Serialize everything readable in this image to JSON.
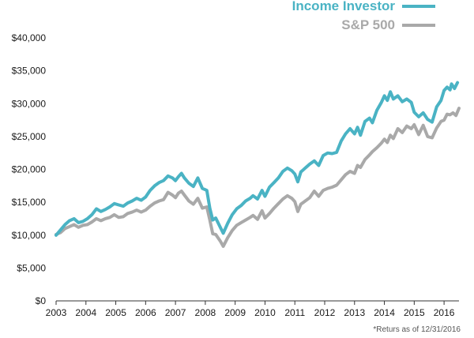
{
  "chart_data": {
    "type": "line",
    "title": "",
    "xlabel": "",
    "ylabel": "",
    "xlim": [
      2003,
      2016.5
    ],
    "ylim": [
      0,
      40000
    ],
    "grid": false,
    "legend_position": "top-right",
    "y_ticks": [
      0,
      5000,
      10000,
      15000,
      20000,
      25000,
      30000,
      35000,
      40000
    ],
    "y_tick_labels": [
      "$0",
      "$5,000",
      "$10,000",
      "$15,000",
      "$20,000",
      "$25,000",
      "$30,000",
      "$35,000",
      "$40,000"
    ],
    "x_ticks": [
      2003,
      2004,
      2005,
      2006,
      2007,
      2008,
      2009,
      2010,
      2011,
      2012,
      2013,
      2014,
      2015,
      2016
    ],
    "x_tick_labels": [
      "2003",
      "2004",
      "2005",
      "2006",
      "2007",
      "2008",
      "2009",
      "2010",
      "2011",
      "2012",
      "2013",
      "2014",
      "2015",
      "2016"
    ],
    "footnote": "*Returs as of 12/31/2016",
    "series": [
      {
        "name": "Income Investor",
        "color": "#4ab3c4",
        "points": [
          [
            2003.0,
            10000
          ],
          [
            2003.15,
            10800
          ],
          [
            2003.3,
            11600
          ],
          [
            2003.45,
            12200
          ],
          [
            2003.6,
            12500
          ],
          [
            2003.75,
            11900
          ],
          [
            2003.9,
            12100
          ],
          [
            2004.05,
            12500
          ],
          [
            2004.2,
            13100
          ],
          [
            2004.35,
            14000
          ],
          [
            2004.5,
            13600
          ],
          [
            2004.65,
            13900
          ],
          [
            2004.8,
            14300
          ],
          [
            2004.95,
            14800
          ],
          [
            2005.1,
            14600
          ],
          [
            2005.25,
            14400
          ],
          [
            2005.4,
            14900
          ],
          [
            2005.55,
            15200
          ],
          [
            2005.7,
            15600
          ],
          [
            2005.85,
            15300
          ],
          [
            2006.0,
            15800
          ],
          [
            2006.15,
            16800
          ],
          [
            2006.3,
            17500
          ],
          [
            2006.45,
            18000
          ],
          [
            2006.6,
            18300
          ],
          [
            2006.75,
            19000
          ],
          [
            2006.9,
            18700
          ],
          [
            2007.0,
            18300
          ],
          [
            2007.1,
            18900
          ],
          [
            2007.2,
            19400
          ],
          [
            2007.3,
            18700
          ],
          [
            2007.45,
            17900
          ],
          [
            2007.6,
            17400
          ],
          [
            2007.75,
            18700
          ],
          [
            2007.9,
            17100
          ],
          [
            2008.05,
            16800
          ],
          [
            2008.15,
            14100
          ],
          [
            2008.25,
            12300
          ],
          [
            2008.35,
            12600
          ],
          [
            2008.5,
            11200
          ],
          [
            2008.6,
            10300
          ],
          [
            2008.75,
            11800
          ],
          [
            2008.9,
            13100
          ],
          [
            2009.05,
            14000
          ],
          [
            2009.2,
            14500
          ],
          [
            2009.35,
            15200
          ],
          [
            2009.5,
            15600
          ],
          [
            2009.6,
            16000
          ],
          [
            2009.75,
            15500
          ],
          [
            2009.9,
            16800
          ],
          [
            2010.0,
            15900
          ],
          [
            2010.15,
            17300
          ],
          [
            2010.3,
            18000
          ],
          [
            2010.45,
            18700
          ],
          [
            2010.6,
            19700
          ],
          [
            2010.75,
            20200
          ],
          [
            2010.9,
            19800
          ],
          [
            2011.0,
            19300
          ],
          [
            2011.1,
            18100
          ],
          [
            2011.2,
            19600
          ],
          [
            2011.35,
            20200
          ],
          [
            2011.5,
            20800
          ],
          [
            2011.65,
            21300
          ],
          [
            2011.8,
            20600
          ],
          [
            2011.95,
            22100
          ],
          [
            2012.1,
            22500
          ],
          [
            2012.25,
            22400
          ],
          [
            2012.4,
            22600
          ],
          [
            2012.55,
            24300
          ],
          [
            2012.7,
            25400
          ],
          [
            2012.85,
            26200
          ],
          [
            2013.0,
            25400
          ],
          [
            2013.1,
            26400
          ],
          [
            2013.2,
            25200
          ],
          [
            2013.35,
            27300
          ],
          [
            2013.5,
            27800
          ],
          [
            2013.6,
            27100
          ],
          [
            2013.75,
            29000
          ],
          [
            2013.9,
            30200
          ],
          [
            2014.0,
            31200
          ],
          [
            2014.1,
            30500
          ],
          [
            2014.2,
            31800
          ],
          [
            2014.3,
            30700
          ],
          [
            2014.45,
            31200
          ],
          [
            2014.6,
            30300
          ],
          [
            2014.75,
            30700
          ],
          [
            2014.9,
            30200
          ],
          [
            2015.0,
            28700
          ],
          [
            2015.15,
            28000
          ],
          [
            2015.3,
            28600
          ],
          [
            2015.45,
            27600
          ],
          [
            2015.6,
            27200
          ],
          [
            2015.75,
            29500
          ],
          [
            2015.9,
            30500
          ],
          [
            2016.0,
            32000
          ],
          [
            2016.1,
            32500
          ],
          [
            2016.2,
            32100
          ],
          [
            2016.25,
            33000
          ],
          [
            2016.35,
            32300
          ],
          [
            2016.45,
            33200
          ]
        ]
      },
      {
        "name": "S&P 500",
        "color": "#a9a9a9",
        "points": [
          [
            2003.0,
            10100
          ],
          [
            2003.15,
            10400
          ],
          [
            2003.3,
            11000
          ],
          [
            2003.45,
            11300
          ],
          [
            2003.6,
            11600
          ],
          [
            2003.75,
            11200
          ],
          [
            2003.9,
            11500
          ],
          [
            2004.05,
            11600
          ],
          [
            2004.2,
            12000
          ],
          [
            2004.35,
            12500
          ],
          [
            2004.5,
            12200
          ],
          [
            2004.65,
            12500
          ],
          [
            2004.8,
            12700
          ],
          [
            2004.95,
            13100
          ],
          [
            2005.1,
            12700
          ],
          [
            2005.25,
            12800
          ],
          [
            2005.4,
            13300
          ],
          [
            2005.55,
            13500
          ],
          [
            2005.7,
            13800
          ],
          [
            2005.85,
            13500
          ],
          [
            2006.0,
            13800
          ],
          [
            2006.15,
            14400
          ],
          [
            2006.3,
            14900
          ],
          [
            2006.45,
            15200
          ],
          [
            2006.6,
            15400
          ],
          [
            2006.75,
            16500
          ],
          [
            2006.9,
            16100
          ],
          [
            2007.0,
            15700
          ],
          [
            2007.1,
            16400
          ],
          [
            2007.2,
            16700
          ],
          [
            2007.3,
            16100
          ],
          [
            2007.45,
            15200
          ],
          [
            2007.6,
            14700
          ],
          [
            2007.75,
            15600
          ],
          [
            2007.9,
            14100
          ],
          [
            2008.05,
            14300
          ],
          [
            2008.15,
            12300
          ],
          [
            2008.25,
            10200
          ],
          [
            2008.35,
            10100
          ],
          [
            2008.5,
            9100
          ],
          [
            2008.6,
            8300
          ],
          [
            2008.75,
            9600
          ],
          [
            2008.9,
            10700
          ],
          [
            2009.05,
            11500
          ],
          [
            2009.2,
            11900
          ],
          [
            2009.35,
            12300
          ],
          [
            2009.5,
            12700
          ],
          [
            2009.6,
            13000
          ],
          [
            2009.75,
            12400
          ],
          [
            2009.9,
            13700
          ],
          [
            2010.0,
            12600
          ],
          [
            2010.15,
            13300
          ],
          [
            2010.3,
            14100
          ],
          [
            2010.45,
            14800
          ],
          [
            2010.6,
            15500
          ],
          [
            2010.75,
            16000
          ],
          [
            2010.9,
            15600
          ],
          [
            2011.0,
            15100
          ],
          [
            2011.1,
            13600
          ],
          [
            2011.2,
            14700
          ],
          [
            2011.35,
            15200
          ],
          [
            2011.5,
            15700
          ],
          [
            2011.65,
            16700
          ],
          [
            2011.8,
            15900
          ],
          [
            2011.95,
            16800
          ],
          [
            2012.1,
            17100
          ],
          [
            2012.25,
            17300
          ],
          [
            2012.4,
            17600
          ],
          [
            2012.55,
            18400
          ],
          [
            2012.7,
            19200
          ],
          [
            2012.85,
            19700
          ],
          [
            2013.0,
            19400
          ],
          [
            2013.1,
            20600
          ],
          [
            2013.2,
            20300
          ],
          [
            2013.35,
            21500
          ],
          [
            2013.5,
            22200
          ],
          [
            2013.6,
            22700
          ],
          [
            2013.75,
            23300
          ],
          [
            2013.9,
            24000
          ],
          [
            2014.0,
            24600
          ],
          [
            2014.1,
            24100
          ],
          [
            2014.2,
            25200
          ],
          [
            2014.3,
            24700
          ],
          [
            2014.45,
            26200
          ],
          [
            2014.6,
            25600
          ],
          [
            2014.75,
            26600
          ],
          [
            2014.9,
            26200
          ],
          [
            2015.0,
            26800
          ],
          [
            2015.15,
            25300
          ],
          [
            2015.3,
            26700
          ],
          [
            2015.45,
            25000
          ],
          [
            2015.6,
            24800
          ],
          [
            2015.75,
            26300
          ],
          [
            2015.9,
            27300
          ],
          [
            2016.0,
            27500
          ],
          [
            2016.1,
            28400
          ],
          [
            2016.2,
            28300
          ],
          [
            2016.3,
            28600
          ],
          [
            2016.4,
            28200
          ],
          [
            2016.5,
            29300
          ]
        ]
      }
    ]
  }
}
